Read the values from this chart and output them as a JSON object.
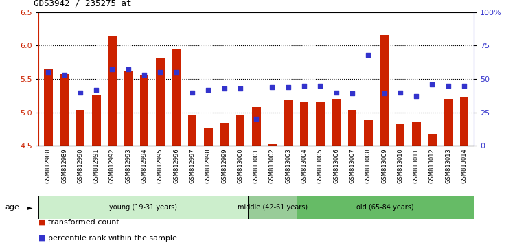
{
  "title": "GDS3942 / 235275_at",
  "samples": [
    "GSM812988",
    "GSM812989",
    "GSM812990",
    "GSM812991",
    "GSM812992",
    "GSM812993",
    "GSM812994",
    "GSM812995",
    "GSM812996",
    "GSM812997",
    "GSM812998",
    "GSM812999",
    "GSM813000",
    "GSM813001",
    "GSM813002",
    "GSM813003",
    "GSM813004",
    "GSM813005",
    "GSM813006",
    "GSM813007",
    "GSM813008",
    "GSM813009",
    "GSM813010",
    "GSM813011",
    "GSM813012",
    "GSM813013",
    "GSM813014"
  ],
  "bar_values": [
    5.65,
    5.57,
    5.04,
    5.26,
    6.14,
    5.62,
    5.56,
    5.82,
    5.95,
    4.96,
    4.76,
    4.84,
    4.96,
    5.08,
    4.52,
    5.18,
    5.16,
    5.16,
    5.2,
    5.04,
    4.88,
    6.16,
    4.82,
    4.86,
    4.68,
    5.2,
    5.22
  ],
  "percentile_values": [
    55,
    53,
    40,
    42,
    57,
    57,
    53,
    55,
    55,
    40,
    42,
    43,
    43,
    20,
    44,
    44,
    45,
    45,
    40,
    39,
    68,
    39,
    40,
    37,
    46,
    45,
    45
  ],
  "bar_color": "#cc2200",
  "dot_color": "#3333cc",
  "ylim": [
    4.5,
    6.5
  ],
  "y2lim": [
    0,
    100
  ],
  "yticks": [
    4.5,
    5.0,
    5.5,
    6.0,
    6.5
  ],
  "y2ticks": [
    0,
    25,
    50,
    75,
    100
  ],
  "y2ticklabels": [
    "0",
    "25",
    "50",
    "75",
    "100%"
  ],
  "groups": [
    {
      "label": "young (19-31 years)",
      "start": 0,
      "end": 13,
      "color": "#cceecc"
    },
    {
      "label": "middle (42-61 years)",
      "start": 13,
      "end": 16,
      "color": "#99cc99"
    },
    {
      "label": "old (65-84 years)",
      "start": 16,
      "end": 27,
      "color": "#66bb66"
    }
  ],
  "legend_items": [
    {
      "label": "transformed count",
      "color": "#cc2200"
    },
    {
      "label": "percentile rank within the sample",
      "color": "#3333cc"
    }
  ]
}
